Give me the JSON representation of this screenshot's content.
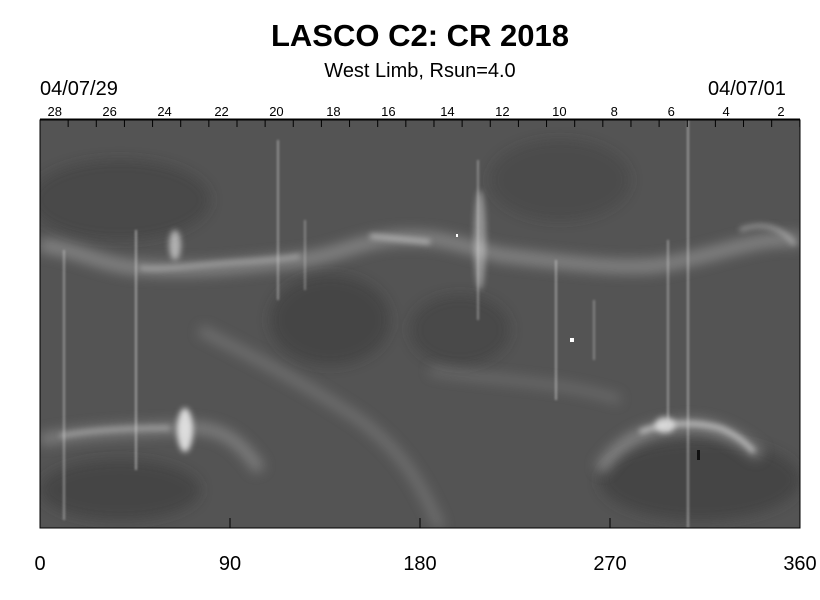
{
  "chart_data": {
    "type": "heatmap",
    "title": "LASCO C2: CR 2018",
    "subtitle": "West Limb, Rsun=4.0",
    "date_start": "04/07/29",
    "date_end": "04/07/01",
    "colormap": "grayscale",
    "xlim": [
      0,
      360
    ],
    "x_ticks": [
      "0",
      "90",
      "180",
      "270",
      "360"
    ],
    "top_axis_days": [
      {
        "label": "28",
        "pos": 7
      },
      {
        "label": "26",
        "pos": 33
      },
      {
        "label": "24",
        "pos": 59
      },
      {
        "label": "22",
        "pos": 86
      },
      {
        "label": "20",
        "pos": 112
      },
      {
        "label": "18",
        "pos": 139
      },
      {
        "label": "16",
        "pos": 165
      },
      {
        "label": "14",
        "pos": 193
      },
      {
        "label": "12",
        "pos": 219
      },
      {
        "label": "10",
        "pos": 246
      },
      {
        "label": "8",
        "pos": 272
      },
      {
        "label": "6",
        "pos": 299
      },
      {
        "label": "4",
        "pos": 325
      },
      {
        "label": "2",
        "pos": 351
      }
    ],
    "colors": {
      "background": "#545454",
      "bright": "#e8e8e8"
    }
  }
}
